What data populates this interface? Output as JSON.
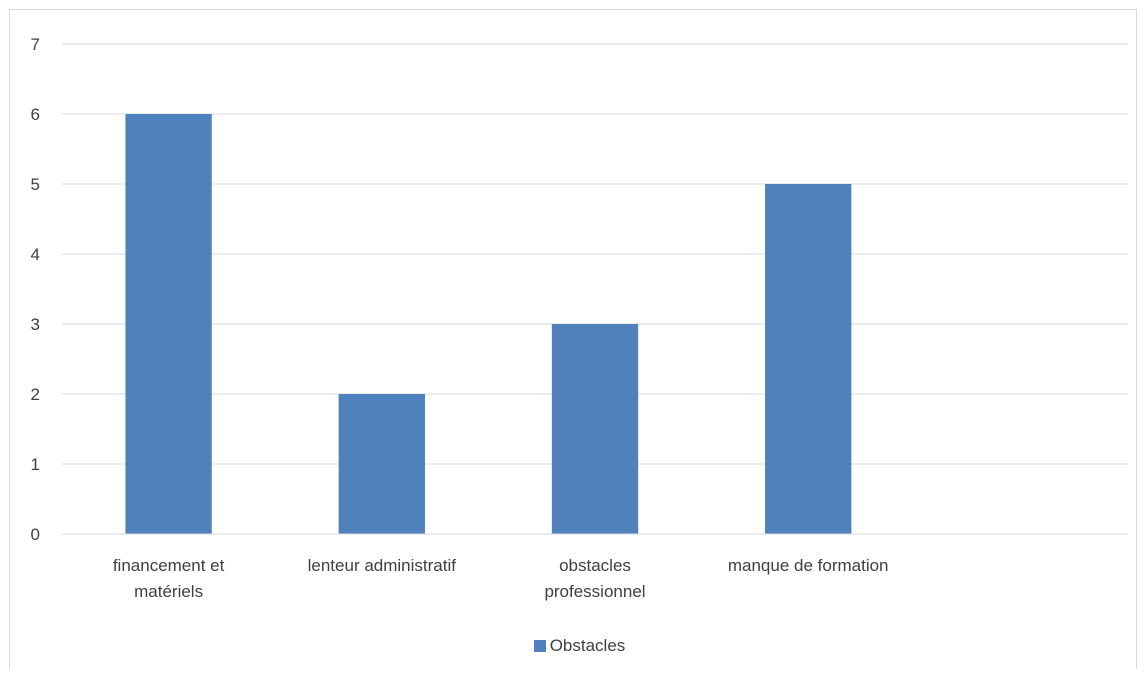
{
  "chart_data": {
    "type": "bar",
    "categories": [
      [
        "financement et",
        "matériels"
      ],
      [
        "lenteur administratif"
      ],
      [
        "obstacles",
        "professionnel"
      ],
      [
        "manque de formation"
      ],
      [
        ""
      ]
    ],
    "series": [
      {
        "name": "Obstacles",
        "values": [
          6,
          2,
          3,
          5,
          null
        ],
        "color": "#4f81bd"
      }
    ],
    "ylim": [
      0,
      7
    ],
    "yticks": [
      "0",
      "1",
      "2",
      "3",
      "4",
      "5",
      "6",
      "7"
    ],
    "grid": true,
    "legend_position": "bottom"
  }
}
